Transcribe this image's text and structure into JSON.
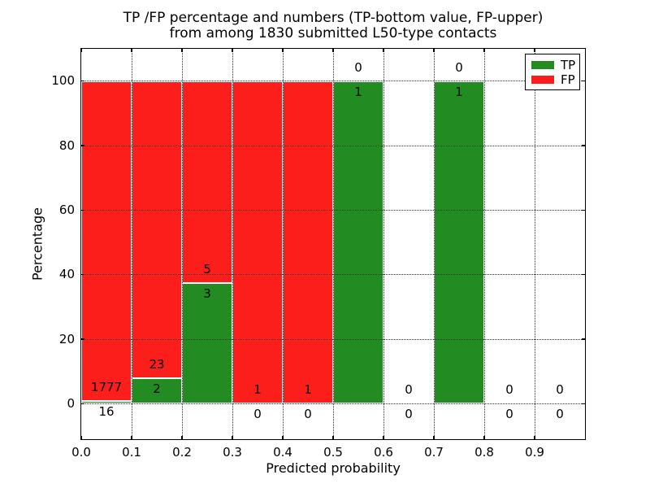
{
  "chart_data": {
    "type": "bar",
    "stacked": true,
    "title_lines": [
      "TP /FP percentage and numbers (TP-bottom value, FP-upper)",
      "from among 1830 submitted L50-type contacts"
    ],
    "xlabel": "Predicted probability",
    "ylabel": "Percentage",
    "total_contacts": 1830,
    "xlim": [
      0.0,
      1.0
    ],
    "ylim": [
      -11,
      110
    ],
    "x_ticks": [
      0.0,
      0.1,
      0.2,
      0.3,
      0.4,
      0.5,
      0.6,
      0.7,
      0.8,
      0.9
    ],
    "x_tick_labels": [
      "0.0",
      "0.1",
      "0.2",
      "0.3",
      "0.4",
      "0.5",
      "0.6",
      "0.7",
      "0.8",
      "0.9"
    ],
    "y_ticks": [
      0,
      20,
      40,
      60,
      80,
      100
    ],
    "y_tick_labels": [
      "0",
      "20",
      "40",
      "60",
      "80",
      "100"
    ],
    "grid": {
      "style": "dotted",
      "color": "#333333",
      "drawn_over_bars": true
    },
    "colors": {
      "tp": "#228b22",
      "fp": "#fc1e1a",
      "bar_edge": "#ffffff"
    },
    "legend": {
      "position": "upper right",
      "entries": [
        {
          "label": "TP",
          "color": "#228b22"
        },
        {
          "label": "FP",
          "color": "#fc1e1a"
        }
      ]
    },
    "bin_width": 0.1,
    "bins": [
      {
        "x_start": 0.0,
        "x_end": 0.1,
        "tp_count": 16,
        "fp_count": 1777,
        "tp_pct": 0.89,
        "fp_pct": 99.11
      },
      {
        "x_start": 0.1,
        "x_end": 0.2,
        "tp_count": 2,
        "fp_count": 23,
        "tp_pct": 8.0,
        "fp_pct": 92.0
      },
      {
        "x_start": 0.2,
        "x_end": 0.3,
        "tp_count": 3,
        "fp_count": 5,
        "tp_pct": 37.5,
        "fp_pct": 62.5
      },
      {
        "x_start": 0.3,
        "x_end": 0.4,
        "tp_count": 0,
        "fp_count": 1,
        "tp_pct": 0.0,
        "fp_pct": 100.0
      },
      {
        "x_start": 0.4,
        "x_end": 0.5,
        "tp_count": 0,
        "fp_count": 1,
        "tp_pct": 0.0,
        "fp_pct": 100.0
      },
      {
        "x_start": 0.5,
        "x_end": 0.6,
        "tp_count": 1,
        "fp_count": 0,
        "tp_pct": 100.0,
        "fp_pct": 0.0
      },
      {
        "x_start": 0.6,
        "x_end": 0.7,
        "tp_count": 0,
        "fp_count": 0,
        "tp_pct": 0.0,
        "fp_pct": 0.0
      },
      {
        "x_start": 0.7,
        "x_end": 0.8,
        "tp_count": 1,
        "fp_count": 0,
        "tp_pct": 100.0,
        "fp_pct": 0.0
      },
      {
        "x_start": 0.8,
        "x_end": 0.9,
        "tp_count": 0,
        "fp_count": 0,
        "tp_pct": 0.0,
        "fp_pct": 0.0
      },
      {
        "x_start": 0.9,
        "x_end": 1.0,
        "tp_count": 0,
        "fp_count": 0,
        "tp_pct": 0.0,
        "fp_pct": 0.0
      }
    ]
  }
}
